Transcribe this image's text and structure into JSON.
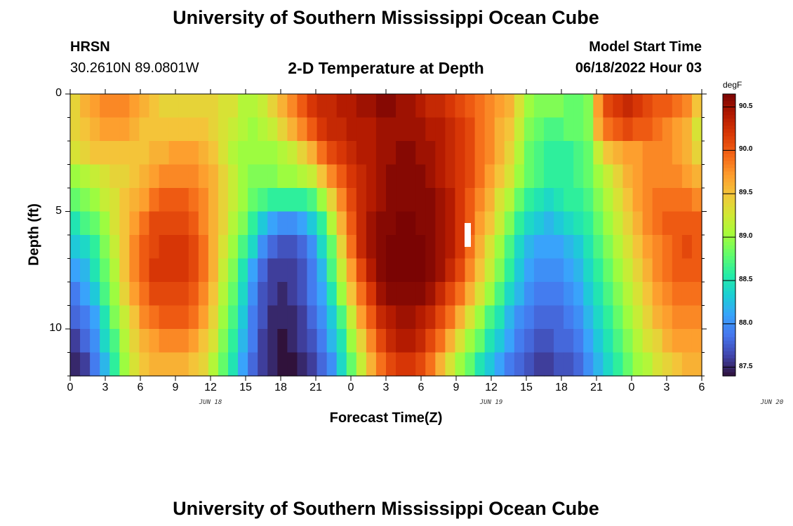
{
  "header": {
    "title": "University of Southern Mississippi Ocean Cube",
    "station": "HRSN",
    "coords": "30.2610N  89.0801W",
    "subtitle": "2-D Temperature at Depth",
    "model_label": "Model Start Time",
    "model_time": "06/18/2022 Hour 03",
    "footer_title": "University of Southern Mississippi Ocean Cube"
  },
  "colors": {
    "background": "#ffffff",
    "colormap": [
      "#30123b",
      "#4145ab",
      "#4675ed",
      "#39a2fc",
      "#1bcfd4",
      "#24eca6",
      "#61fc6c",
      "#a4fc3b",
      "#d1e834",
      "#f3c63a",
      "#fe9b2d",
      "#f36315",
      "#d93806",
      "#b11901",
      "#7a0403"
    ]
  },
  "chart_data": {
    "type": "heatmap",
    "xlabel": "Forecast Time(Z)",
    "ylabel": "Depth (ft)",
    "x_tick_labels": [
      "0",
      "3",
      "6",
      "9",
      "12",
      "15",
      "18",
      "21",
      "0",
      "3",
      "6",
      "9",
      "12",
      "15",
      "18",
      "21",
      "0",
      "3",
      "6"
    ],
    "date_labels": [
      {
        "text": "JUN 18",
        "hour": 12
      },
      {
        "text": "JUN 19",
        "hour": 36
      },
      {
        "text": "JUN 20",
        "hour": 60
      }
    ],
    "y_tick_labels": [
      "0",
      "5",
      "10"
    ],
    "y_ticks_ft": [
      0,
      5,
      10
    ],
    "xlim_hours": [
      0,
      54
    ],
    "ylim_ft": [
      0,
      12
    ],
    "colorbar": {
      "unit": "degF",
      "min": 87.4,
      "max": 90.65,
      "ticks": [
        "87.5",
        "88.0",
        "88.5",
        "89.0",
        "89.5",
        "90.0",
        "90.5"
      ]
    },
    "depth_layers_ft": [
      0.5,
      1.5,
      2.5,
      3.5,
      4.5,
      5.5,
      6.5,
      7.5,
      8.5,
      9.5,
      10.5,
      11.5
    ],
    "time_step_hours": 1,
    "values_degF": [
      [
        89.4,
        89.6,
        89.7,
        89.8,
        89.8,
        89.8,
        89.7,
        89.6,
        89.5,
        89.4,
        89.4,
        89.4,
        89.4,
        89.4,
        89.4,
        89.3,
        89.3,
        89.1,
        89.1,
        89.2,
        89.4,
        89.6,
        89.8,
        90.0,
        90.2,
        90.3,
        90.3,
        90.4,
        90.4,
        90.5,
        90.5,
        90.6,
        90.6,
        90.5,
        90.5,
        90.4,
        90.3,
        90.3,
        90.2,
        90.1,
        90.0,
        89.9,
        89.8,
        89.7,
        89.6,
        89.3,
        89.0,
        88.9,
        88.9,
        88.9,
        88.8,
        88.8,
        88.9,
        89.7,
        90.1,
        90.2,
        90.3,
        90.2,
        90.1,
        90.0,
        90.0,
        89.9,
        89.8,
        89.5
      ],
      [
        89.4,
        89.5,
        89.6,
        89.7,
        89.7,
        89.7,
        89.6,
        89.5,
        89.5,
        89.5,
        89.5,
        89.5,
        89.5,
        89.5,
        89.4,
        89.3,
        89.2,
        89.1,
        89.0,
        89.1,
        89.2,
        89.4,
        89.6,
        89.8,
        90.0,
        90.2,
        90.3,
        90.3,
        90.4,
        90.4,
        90.4,
        90.5,
        90.5,
        90.5,
        90.5,
        90.5,
        90.4,
        90.4,
        90.3,
        90.2,
        90.1,
        89.9,
        89.8,
        89.6,
        89.5,
        89.2,
        88.9,
        88.8,
        88.7,
        88.7,
        88.8,
        88.8,
        88.9,
        89.6,
        89.9,
        90.0,
        90.1,
        90.0,
        90.0,
        89.9,
        89.8,
        89.7,
        89.6,
        89.3
      ],
      [
        89.3,
        89.4,
        89.5,
        89.5,
        89.5,
        89.5,
        89.5,
        89.5,
        89.6,
        89.6,
        89.7,
        89.7,
        89.7,
        89.6,
        89.5,
        89.3,
        89.1,
        89.0,
        89.0,
        89.0,
        89.0,
        89.1,
        89.2,
        89.4,
        89.6,
        89.9,
        90.1,
        90.2,
        90.3,
        90.4,
        90.4,
        90.5,
        90.5,
        90.6,
        90.6,
        90.5,
        90.5,
        90.4,
        90.3,
        90.2,
        90.1,
        89.9,
        89.8,
        89.6,
        89.4,
        89.1,
        88.8,
        88.7,
        88.6,
        88.6,
        88.6,
        88.7,
        88.8,
        89.2,
        89.5,
        89.6,
        89.7,
        89.7,
        89.8,
        89.8,
        89.8,
        89.7,
        89.6,
        89.4
      ],
      [
        89.0,
        89.1,
        89.2,
        89.3,
        89.4,
        89.4,
        89.5,
        89.6,
        89.7,
        89.8,
        89.8,
        89.8,
        89.8,
        89.7,
        89.6,
        89.4,
        89.2,
        89.0,
        88.9,
        88.9,
        88.9,
        89.0,
        89.0,
        89.1,
        89.2,
        89.5,
        89.8,
        90.0,
        90.2,
        90.3,
        90.4,
        90.5,
        90.6,
        90.6,
        90.6,
        90.6,
        90.5,
        90.4,
        90.3,
        90.2,
        90.1,
        89.9,
        89.7,
        89.5,
        89.3,
        89.0,
        88.8,
        88.7,
        88.6,
        88.6,
        88.6,
        88.7,
        88.8,
        89.0,
        89.2,
        89.4,
        89.6,
        89.7,
        89.8,
        89.8,
        89.8,
        89.8,
        89.7,
        89.6
      ],
      [
        88.8,
        88.9,
        89.0,
        89.2,
        89.3,
        89.5,
        89.6,
        89.7,
        89.9,
        90.0,
        90.0,
        90.0,
        89.9,
        89.8,
        89.6,
        89.4,
        89.2,
        89.0,
        88.8,
        88.7,
        88.6,
        88.6,
        88.6,
        88.6,
        88.7,
        89.0,
        89.4,
        89.8,
        90.1,
        90.3,
        90.4,
        90.5,
        90.6,
        90.6,
        90.6,
        90.6,
        90.6,
        90.5,
        90.4,
        90.2,
        90.0,
        89.8,
        89.6,
        89.3,
        89.1,
        88.8,
        88.6,
        88.5,
        88.4,
        88.5,
        88.6,
        88.6,
        88.7,
        88.9,
        89.1,
        89.3,
        89.5,
        89.7,
        89.8,
        89.9,
        89.9,
        89.9,
        89.9,
        89.8
      ],
      [
        88.5,
        88.7,
        88.8,
        89.0,
        89.3,
        89.5,
        89.7,
        89.9,
        90.1,
        90.1,
        90.1,
        90.1,
        90.0,
        89.8,
        89.6,
        89.4,
        89.1,
        88.9,
        88.6,
        88.3,
        88.1,
        88.0,
        88.0,
        88.1,
        88.3,
        88.6,
        89.1,
        89.6,
        90.0,
        90.3,
        90.5,
        90.6,
        90.6,
        90.7,
        90.7,
        90.6,
        90.6,
        90.5,
        90.4,
        90.2,
        90.0,
        89.7,
        89.5,
        89.2,
        88.9,
        88.6,
        88.4,
        88.3,
        88.2,
        88.3,
        88.4,
        88.5,
        88.6,
        88.8,
        89.0,
        89.2,
        89.4,
        89.6,
        89.8,
        89.9,
        90.0,
        90.0,
        90.0,
        90.0
      ],
      [
        88.3,
        88.4,
        88.6,
        88.9,
        89.2,
        89.5,
        89.8,
        90.0,
        90.1,
        90.2,
        90.2,
        90.2,
        90.1,
        89.9,
        89.6,
        89.3,
        89.0,
        88.7,
        88.4,
        88.0,
        87.8,
        87.7,
        87.7,
        87.8,
        88.0,
        88.4,
        88.8,
        89.4,
        89.9,
        90.3,
        90.5,
        90.6,
        90.7,
        90.7,
        90.7,
        90.7,
        90.6,
        90.5,
        90.4,
        90.2,
        89.9,
        89.6,
        89.3,
        89.0,
        88.7,
        88.4,
        88.2,
        88.1,
        88.1,
        88.1,
        88.2,
        88.3,
        88.5,
        88.7,
        88.9,
        89.1,
        89.3,
        89.5,
        89.7,
        89.8,
        89.9,
        90.0,
        90.1,
        90.0
      ],
      [
        88.1,
        88.2,
        88.5,
        88.8,
        89.1,
        89.5,
        89.8,
        90.0,
        90.2,
        90.2,
        90.2,
        90.2,
        90.1,
        89.9,
        89.6,
        89.2,
        88.9,
        88.5,
        88.1,
        87.8,
        87.6,
        87.6,
        87.6,
        87.7,
        87.9,
        88.2,
        88.7,
        89.2,
        89.7,
        90.1,
        90.4,
        90.6,
        90.7,
        90.7,
        90.7,
        90.7,
        90.6,
        90.5,
        90.3,
        90.1,
        89.8,
        89.5,
        89.2,
        88.9,
        88.6,
        88.3,
        88.1,
        88.0,
        88.0,
        88.0,
        88.1,
        88.2,
        88.4,
        88.6,
        88.8,
        89.0,
        89.2,
        89.4,
        89.6,
        89.8,
        89.9,
        90.0,
        90.0,
        90.0
      ],
      [
        87.9,
        88.1,
        88.3,
        88.7,
        89.0,
        89.4,
        89.7,
        89.9,
        90.1,
        90.1,
        90.1,
        90.1,
        90.0,
        89.8,
        89.5,
        89.1,
        88.8,
        88.4,
        88.0,
        87.7,
        87.6,
        87.5,
        87.6,
        87.7,
        87.9,
        88.1,
        88.5,
        89.0,
        89.5,
        89.9,
        90.2,
        90.5,
        90.6,
        90.6,
        90.6,
        90.6,
        90.5,
        90.3,
        90.1,
        89.9,
        89.6,
        89.3,
        89.0,
        88.7,
        88.4,
        88.2,
        88.0,
        87.9,
        87.9,
        87.9,
        88.0,
        88.1,
        88.3,
        88.5,
        88.7,
        88.9,
        89.1,
        89.3,
        89.5,
        89.7,
        89.8,
        89.9,
        89.9,
        89.9
      ],
      [
        87.8,
        87.9,
        88.1,
        88.5,
        88.9,
        89.2,
        89.5,
        89.8,
        89.9,
        90.0,
        90.0,
        90.0,
        89.9,
        89.7,
        89.4,
        89.0,
        88.7,
        88.3,
        87.9,
        87.7,
        87.5,
        87.5,
        87.5,
        87.6,
        87.8,
        88.0,
        88.3,
        88.7,
        89.2,
        89.7,
        90.0,
        90.3,
        90.4,
        90.5,
        90.5,
        90.4,
        90.3,
        90.1,
        89.9,
        89.6,
        89.3,
        89.0,
        88.7,
        88.5,
        88.2,
        88.0,
        87.9,
        87.8,
        87.8,
        87.8,
        87.9,
        88.0,
        88.2,
        88.4,
        88.6,
        88.8,
        89.0,
        89.2,
        89.4,
        89.6,
        89.7,
        89.8,
        89.8,
        89.8
      ],
      [
        87.6,
        87.8,
        88.0,
        88.4,
        88.7,
        89.1,
        89.4,
        89.6,
        89.7,
        89.8,
        89.8,
        89.8,
        89.7,
        89.5,
        89.3,
        88.9,
        88.6,
        88.2,
        87.9,
        87.6,
        87.5,
        87.4,
        87.5,
        87.6,
        87.7,
        87.9,
        88.2,
        88.5,
        89.0,
        89.4,
        89.8,
        90.1,
        90.3,
        90.4,
        90.4,
        90.3,
        90.1,
        89.9,
        89.6,
        89.3,
        89.0,
        88.8,
        88.5,
        88.3,
        88.1,
        87.9,
        87.8,
        87.7,
        87.7,
        87.8,
        87.8,
        87.9,
        88.1,
        88.3,
        88.5,
        88.7,
        88.9,
        89.1,
        89.3,
        89.4,
        89.6,
        89.7,
        89.7,
        89.7
      ],
      [
        87.5,
        87.6,
        87.9,
        88.2,
        88.6,
        89.0,
        89.3,
        89.5,
        89.6,
        89.6,
        89.6,
        89.6,
        89.5,
        89.4,
        89.1,
        88.8,
        88.5,
        88.1,
        87.8,
        87.6,
        87.5,
        87.4,
        87.4,
        87.5,
        87.6,
        87.8,
        88.0,
        88.4,
        88.8,
        89.2,
        89.6,
        89.9,
        90.1,
        90.2,
        90.2,
        90.1,
        89.9,
        89.6,
        89.3,
        89.0,
        88.8,
        88.5,
        88.3,
        88.1,
        87.9,
        87.8,
        87.7,
        87.6,
        87.6,
        87.7,
        87.7,
        87.8,
        88.0,
        88.2,
        88.4,
        88.6,
        88.8,
        89.0,
        89.1,
        89.3,
        89.4,
        89.5,
        89.6,
        89.6
      ]
    ]
  }
}
